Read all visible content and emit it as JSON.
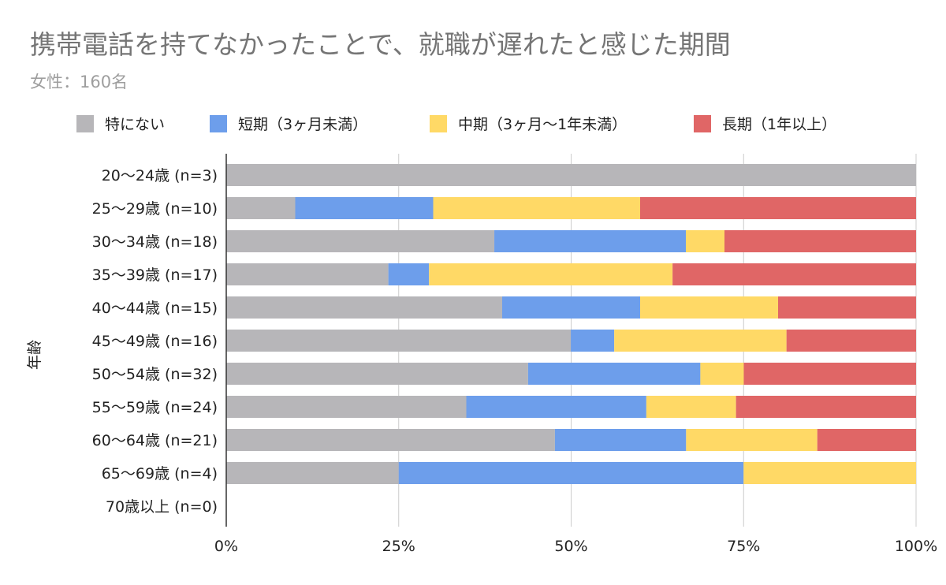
{
  "chart_data": {
    "type": "bar",
    "orientation": "horizontal",
    "stacked": "percent",
    "title": "携帯電話を持てなかったことで、就職が遅れたと感じた期間",
    "subtitle": "女性：160名",
    "ylabel": "年齢",
    "xlabel": "",
    "xlim": [
      0,
      100
    ],
    "x_ticks": [
      "0%",
      "25%",
      "50%",
      "75%",
      "100%"
    ],
    "grid": true,
    "legend_position": "top",
    "categories": [
      "20〜24歳 (n=3)",
      "25〜29歳 (n=10)",
      "30〜34歳 (n=18)",
      "35〜39歳 (n=17)",
      "40〜44歳 (n=15)",
      "45〜49歳 (n=16)",
      "50〜54歳 (n=32)",
      "55〜59歳 (n=24)",
      "60〜64歳 (n=21)",
      "65〜69歳 (n=4)",
      "70歳以上 (n=0)"
    ],
    "series": [
      {
        "name": "特にない",
        "color": "#b7b6b9",
        "values": [
          100,
          10,
          38.9,
          23.5,
          40,
          50,
          43.8,
          34.8,
          47.6,
          25,
          0
        ]
      },
      {
        "name": "短期（3ヶ月未満）",
        "color": "#6d9eeb",
        "values": [
          0,
          20,
          27.8,
          5.9,
          20,
          6.3,
          25,
          26.1,
          19.0,
          50,
          0
        ]
      },
      {
        "name": "中期（3ヶ月〜1年未満）",
        "color": "#ffd966",
        "values": [
          0,
          30,
          5.6,
          35.3,
          20,
          25,
          6.3,
          13.0,
          19.0,
          25,
          0
        ]
      },
      {
        "name": "長期（1年以上）",
        "color": "#e06666",
        "values": [
          0,
          40,
          27.8,
          35.3,
          20,
          18.8,
          25,
          26.1,
          14.3,
          0,
          0
        ]
      }
    ]
  }
}
